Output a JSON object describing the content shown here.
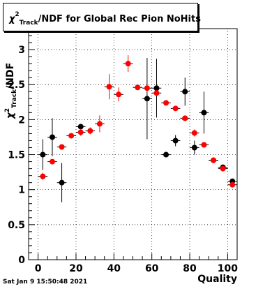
{
  "title": {
    "prefix": "χ",
    "sup": "2",
    "sub": "Track",
    "rest": "/NDF for Global Rec Pion NoHits"
  },
  "footer": "Sat Jan  9 15:50:48 2021",
  "chart_data": {
    "type": "scatter",
    "title": "χ²_Track/NDF for Global Rec Pion NoHits",
    "xlabel": "Quality",
    "ylabel": "χ²_Track/NDF",
    "xlim": [
      -5,
      105
    ],
    "ylim": [
      0,
      3.3
    ],
    "x_ticks": [
      0,
      20,
      40,
      60,
      80,
      100
    ],
    "y_ticks": [
      0,
      0.5,
      1,
      1.5,
      2,
      2.5,
      3
    ],
    "grid": true,
    "series": [
      {
        "color": "#000000",
        "points": [
          {
            "x": 2.5,
            "y": 1.5,
            "err": 0.22
          },
          {
            "x": 7.5,
            "y": 1.75,
            "err": 0.27
          },
          {
            "x": 12.5,
            "y": 1.1,
            "err": 0.28
          },
          {
            "x": 22.5,
            "y": 1.9,
            "err": 0.03
          },
          {
            "x": 57.5,
            "y": 2.3,
            "err": 0.58
          },
          {
            "x": 62.5,
            "y": 2.45,
            "err": 0.42
          },
          {
            "x": 67.5,
            "y": 1.5,
            "err": 0.02
          },
          {
            "x": 72.5,
            "y": 1.7,
            "err": 0.08
          },
          {
            "x": 77.5,
            "y": 2.4,
            "err": 0.2
          },
          {
            "x": 82.5,
            "y": 1.6,
            "err": 0.1
          },
          {
            "x": 87.5,
            "y": 2.1,
            "err": 0.3
          },
          {
            "x": 92.5,
            "y": 1.42,
            "err": 0.04
          },
          {
            "x": 97.5,
            "y": 1.32,
            "err": 0.03
          },
          {
            "x": 102.5,
            "y": 1.12,
            "err": 0.02
          }
        ]
      },
      {
        "color": "#ff0000",
        "points": [
          {
            "x": 2.5,
            "y": 1.19,
            "err": 0.05
          },
          {
            "x": 7.5,
            "y": 1.4,
            "err": 0.03
          },
          {
            "x": 12.5,
            "y": 1.61,
            "err": 0.02
          },
          {
            "x": 17.5,
            "y": 1.77,
            "err": 0.02
          },
          {
            "x": 22.5,
            "y": 1.82,
            "err": 0.05
          },
          {
            "x": 27.5,
            "y": 1.84,
            "err": 0.05
          },
          {
            "x": 32.5,
            "y": 1.94,
            "err": 0.12
          },
          {
            "x": 37.5,
            "y": 2.47,
            "err": 0.18
          },
          {
            "x": 42.5,
            "y": 2.36,
            "err": 0.1
          },
          {
            "x": 47.5,
            "y": 2.8,
            "err": 0.12
          },
          {
            "x": 52.5,
            "y": 2.46,
            "err": 0.03
          },
          {
            "x": 57.5,
            "y": 2.45,
            "err": 0.05
          },
          {
            "x": 62.5,
            "y": 2.38,
            "err": 0.04
          },
          {
            "x": 67.5,
            "y": 2.24,
            "err": 0.02
          },
          {
            "x": 72.5,
            "y": 2.16,
            "err": 0.02
          },
          {
            "x": 77.5,
            "y": 2.02,
            "err": 0.02
          },
          {
            "x": 82.5,
            "y": 1.81,
            "err": 0.05
          },
          {
            "x": 87.5,
            "y": 1.64,
            "err": 0.02
          },
          {
            "x": 92.5,
            "y": 1.42,
            "err": 0.02
          },
          {
            "x": 97.5,
            "y": 1.3,
            "err": 0.02
          },
          {
            "x": 102.5,
            "y": 1.07,
            "err": 0.03
          }
        ]
      }
    ]
  }
}
